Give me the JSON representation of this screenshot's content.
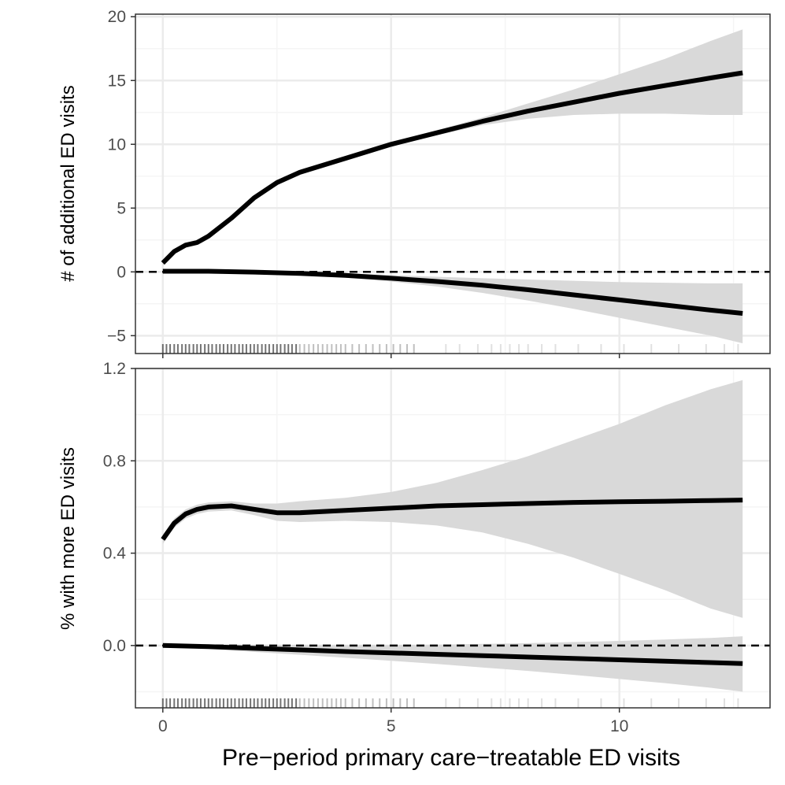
{
  "chart_data": [
    {
      "type": "line",
      "panel": "top",
      "xlabel": "Pre−period primary care−treatable ED visits",
      "ylabel": "# of additional ED visits",
      "xlim": [
        -0.6,
        13.3
      ],
      "ylim": [
        -6.4,
        20.2
      ],
      "x_ticks": [
        0,
        5,
        10
      ],
      "x_tick_labels": [
        "0",
        "5",
        "10"
      ],
      "y_ticks": [
        -5,
        0,
        5,
        10,
        15,
        20
      ],
      "y_tick_labels": [
        "−5",
        "0",
        "5",
        "10",
        "15",
        "20"
      ],
      "reference_line_y": 0,
      "grid": true,
      "series": [
        {
          "x": [
            0,
            0.25,
            0.5,
            0.75,
            1,
            1.5,
            2,
            2.5,
            3,
            4,
            5,
            6,
            7,
            8,
            9,
            10,
            11,
            12,
            12.7
          ],
          "y": [
            0.7,
            1.6,
            2.1,
            2.3,
            2.8,
            4.2,
            5.8,
            7.0,
            7.8,
            8.9,
            10.0,
            10.9,
            11.8,
            12.6,
            13.3,
            14.0,
            14.6,
            15.2,
            15.6
          ],
          "lower": [
            0.5,
            1.4,
            1.9,
            2.1,
            2.6,
            4.0,
            5.6,
            6.8,
            7.6,
            8.7,
            9.8,
            10.7,
            11.5,
            12.0,
            12.3,
            12.4,
            12.4,
            12.3,
            12.3
          ],
          "upper": [
            0.9,
            1.8,
            2.3,
            2.5,
            3.0,
            4.4,
            6.0,
            7.2,
            8.0,
            9.1,
            10.2,
            11.1,
            12.1,
            13.2,
            14.3,
            15.5,
            16.7,
            18.1,
            19.0
          ]
        },
        {
          "x": [
            0,
            1,
            2,
            3,
            4,
            5,
            6,
            7,
            8,
            9,
            10,
            11,
            12,
            12.7
          ],
          "y": [
            0.05,
            0.05,
            -0.02,
            -0.12,
            -0.28,
            -0.5,
            -0.75,
            -1.05,
            -1.4,
            -1.8,
            -2.2,
            -2.6,
            -3.0,
            -3.25
          ],
          "lower": [
            0.0,
            -0.05,
            -0.12,
            -0.25,
            -0.45,
            -0.75,
            -1.15,
            -1.65,
            -2.25,
            -2.9,
            -3.6,
            -4.3,
            -5.0,
            -5.6
          ],
          "upper": [
            0.1,
            0.15,
            0.1,
            0.02,
            -0.1,
            -0.25,
            -0.38,
            -0.5,
            -0.6,
            -0.7,
            -0.8,
            -0.85,
            -0.9,
            -0.9
          ]
        }
      ],
      "rug_x": [
        0,
        0.08,
        0.16,
        0.25,
        0.33,
        0.42,
        0.5,
        0.58,
        0.67,
        0.75,
        0.83,
        0.92,
        1,
        1.08,
        1.17,
        1.25,
        1.33,
        1.42,
        1.5,
        1.58,
        1.67,
        1.75,
        1.83,
        1.92,
        2,
        2.08,
        2.17,
        2.25,
        2.33,
        2.42,
        2.5,
        2.58,
        2.67,
        2.75,
        2.83,
        2.92,
        3,
        3.1,
        3.2,
        3.3,
        3.4,
        3.5,
        3.6,
        3.7,
        3.8,
        3.9,
        4.0,
        4.15,
        4.3,
        4.45,
        4.6,
        4.75,
        4.9,
        5.05,
        5.2,
        5.35,
        5.5,
        6.2,
        6.5,
        6.9,
        7.2,
        7.4,
        7.6,
        7.8,
        8.0,
        8.3,
        8.6,
        9.1,
        9.6,
        10.1,
        10.7,
        11.3,
        11.9,
        12.3,
        12.6
      ]
    },
    {
      "type": "line",
      "panel": "bottom",
      "xlabel": "Pre−period primary care−treatable ED visits",
      "ylabel": "% with more ED visits",
      "xlim": [
        -0.6,
        13.3
      ],
      "ylim": [
        -0.27,
        1.2
      ],
      "x_ticks": [
        0,
        5,
        10
      ],
      "x_tick_labels": [
        "0",
        "5",
        "10"
      ],
      "y_ticks": [
        0.0,
        0.4,
        0.8,
        1.2
      ],
      "y_tick_labels": [
        "0.0",
        "0.4",
        "0.8",
        "1.2"
      ],
      "reference_line_y": 0,
      "grid": true,
      "series": [
        {
          "x": [
            0,
            0.25,
            0.5,
            0.75,
            1,
            1.5,
            2,
            2.5,
            3,
            4,
            5,
            6,
            7,
            8,
            9,
            10,
            11,
            12,
            12.7
          ],
          "y": [
            0.46,
            0.53,
            0.57,
            0.59,
            0.6,
            0.605,
            0.59,
            0.575,
            0.575,
            0.585,
            0.595,
            0.605,
            0.61,
            0.615,
            0.62,
            0.623,
            0.625,
            0.628,
            0.63
          ],
          "lower": [
            0.44,
            0.51,
            0.55,
            0.57,
            0.58,
            0.585,
            0.565,
            0.54,
            0.535,
            0.54,
            0.535,
            0.52,
            0.49,
            0.44,
            0.38,
            0.31,
            0.24,
            0.16,
            0.12
          ],
          "upper": [
            0.48,
            0.55,
            0.59,
            0.61,
            0.62,
            0.625,
            0.615,
            0.615,
            0.625,
            0.64,
            0.665,
            0.705,
            0.76,
            0.82,
            0.89,
            0.96,
            1.04,
            1.11,
            1.15
          ]
        },
        {
          "x": [
            0,
            1,
            2,
            3,
            4,
            5,
            6,
            7,
            8,
            9,
            10,
            11,
            12,
            12.7
          ],
          "y": [
            0.0,
            -0.005,
            -0.012,
            -0.019,
            -0.026,
            -0.032,
            -0.038,
            -0.044,
            -0.05,
            -0.056,
            -0.062,
            -0.068,
            -0.074,
            -0.078
          ],
          "lower": [
            -0.005,
            -0.015,
            -0.028,
            -0.04,
            -0.053,
            -0.066,
            -0.08,
            -0.095,
            -0.11,
            -0.127,
            -0.145,
            -0.163,
            -0.183,
            -0.2
          ],
          "upper": [
            0.005,
            0.005,
            0.004,
            0.002,
            0.001,
            0.002,
            0.004,
            0.007,
            0.01,
            0.015,
            0.02,
            0.026,
            0.033,
            0.04
          ]
        }
      ],
      "rug_x": [
        0,
        0.08,
        0.16,
        0.25,
        0.33,
        0.42,
        0.5,
        0.58,
        0.67,
        0.75,
        0.83,
        0.92,
        1,
        1.08,
        1.17,
        1.25,
        1.33,
        1.42,
        1.5,
        1.58,
        1.67,
        1.75,
        1.83,
        1.92,
        2,
        2.08,
        2.17,
        2.25,
        2.33,
        2.42,
        2.5,
        2.58,
        2.67,
        2.75,
        2.83,
        2.92,
        3,
        3.1,
        3.2,
        3.3,
        3.4,
        3.5,
        3.6,
        3.7,
        3.8,
        3.9,
        4.0,
        4.15,
        4.3,
        4.45,
        4.6,
        4.75,
        4.9,
        5.05,
        5.2,
        5.35,
        5.5,
        6.2,
        6.5,
        6.9,
        7.2,
        7.4,
        7.6,
        7.8,
        8.0,
        8.3,
        8.6,
        9.1,
        9.6,
        10.1,
        10.7,
        11.3,
        11.9,
        12.3,
        12.6
      ]
    }
  ],
  "colors": {
    "line": "#000000",
    "ribbon": "#d9d9d9",
    "grid_major": "#ebebeb",
    "grid_minor": "#f5f5f5",
    "border": "#333333",
    "axis_text": "#4d4d4d",
    "title_text": "#000000"
  }
}
